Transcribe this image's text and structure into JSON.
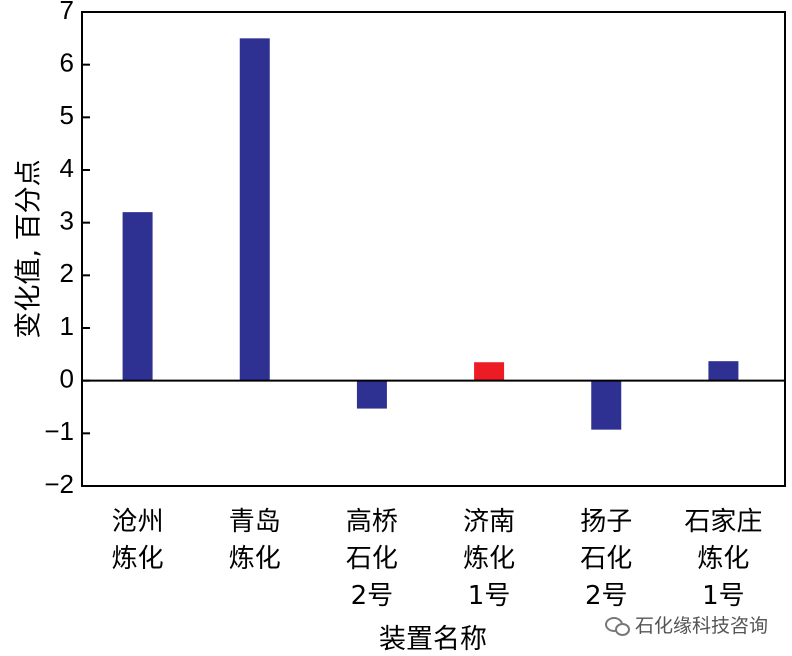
{
  "chart_data": {
    "type": "bar",
    "categories": [
      [
        "沧州",
        "炼化"
      ],
      [
        "青岛",
        "炼化"
      ],
      [
        "高桥",
        "石化",
        "2号"
      ],
      [
        "济南",
        "炼化",
        "1号"
      ],
      [
        "扬子",
        "石化",
        "2号"
      ],
      [
        "石家庄",
        "炼化",
        "1号"
      ]
    ],
    "values": [
      3.2,
      6.5,
      -0.53,
      0.35,
      -0.93,
      0.37
    ],
    "bar_colors": [
      "#2e3192",
      "#2e3192",
      "#2e3192",
      "#ed1c24",
      "#2e3192",
      "#2e3192"
    ],
    "xlabel": "装置名称",
    "ylabel": "变化值, 百分点",
    "ylim": [
      -2,
      7
    ],
    "yticks": [
      "7",
      "6",
      "5",
      "4",
      "3",
      "2",
      "1",
      "0",
      "−1",
      "−2"
    ],
    "grid": false,
    "legend": "none"
  },
  "watermark": {
    "text": "石化缘科技咨询",
    "icon": "wechat-icon"
  }
}
